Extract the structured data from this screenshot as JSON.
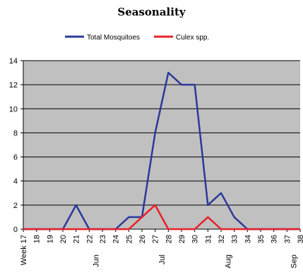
{
  "chart_data": {
    "type": "line",
    "title": "Seasonality",
    "x_categories": [
      "Week 17",
      "18",
      "19",
      "20",
      "21",
      "22",
      "23",
      "24",
      "25",
      "26",
      "27",
      "28",
      "29",
      "30",
      "31",
      "32",
      "33",
      "34",
      "35",
      "36",
      "37",
      "38"
    ],
    "month_labels": [
      {
        "label": "Jun",
        "after_category": "22"
      },
      {
        "label": "Jul",
        "after_category": "27"
      },
      {
        "label": "Aug",
        "after_category": "32"
      },
      {
        "label": "Sep",
        "after_category": "37"
      }
    ],
    "ylim": [
      0,
      14
    ],
    "y_ticks": [
      0,
      2,
      4,
      6,
      8,
      10,
      12,
      14
    ],
    "grid": true,
    "legend_position": "top",
    "plot_background": "#c0c0c0",
    "series": [
      {
        "name": "Total Mosquitoes",
        "color": "#2b3a9a",
        "values": [
          0,
          0,
          0,
          0,
          2,
          0,
          0,
          0,
          1,
          1,
          8,
          13,
          12,
          12,
          2,
          3,
          1,
          0,
          0,
          0,
          0,
          0
        ]
      },
      {
        "name": "Culex spp.",
        "color": "#e8202a",
        "values": [
          0,
          0,
          0,
          0,
          0,
          0,
          0,
          0,
          0,
          1,
          2,
          0,
          0,
          0,
          1,
          0,
          0,
          0,
          0,
          0,
          0,
          0
        ]
      }
    ]
  }
}
